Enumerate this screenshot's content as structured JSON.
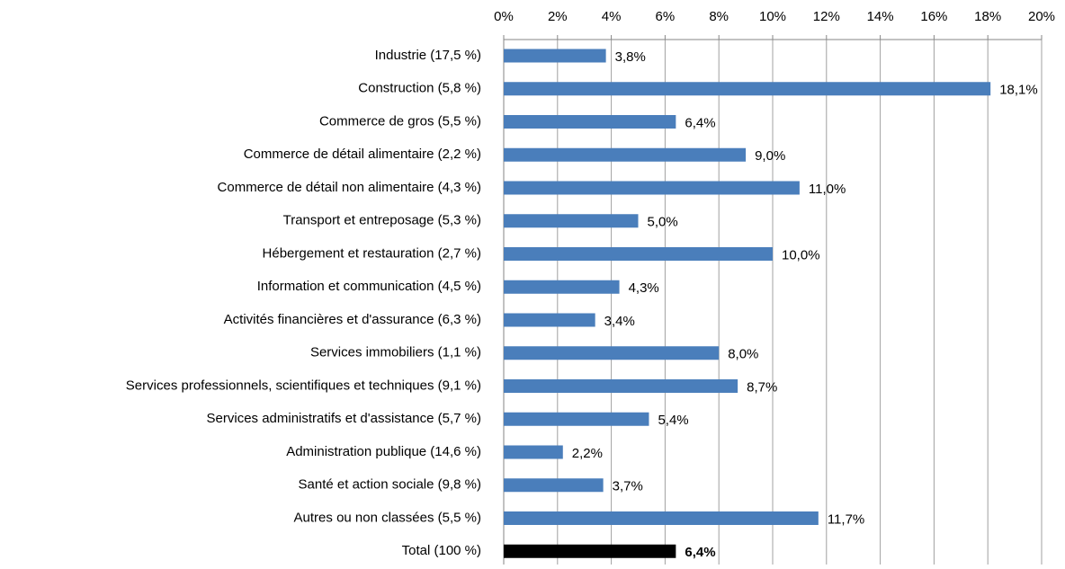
{
  "chart_data": {
    "type": "bar",
    "orientation": "horizontal",
    "categories": [
      "Industrie (17,5 %)",
      "Construction (5,8 %)",
      "Commerce de gros (5,5 %)",
      "Commerce de détail alimentaire (2,2 %)",
      "Commerce de détail non alimentaire (4,3 %)",
      "Transport et entreposage (5,3 %)",
      "Hébergement et restauration (2,7 %)",
      "Information et communication (4,5 %)",
      "Activités financières et d'assurance (6,3 %)",
      "Services immobiliers (1,1 %)",
      "Services professionnels, scientifiques et techniques (9,1 %)",
      "Services administratifs et d'assistance (5,7 %)",
      "Administration publique (14,6 %)",
      "Santé et action sociale (9,8 %)",
      "Autres ou non classées (5,5 %)",
      "Total (100 %)"
    ],
    "values": [
      3.8,
      18.1,
      6.4,
      9.0,
      11.0,
      5.0,
      10.0,
      4.3,
      3.4,
      8.0,
      8.7,
      5.4,
      2.2,
      3.7,
      11.7,
      6.4
    ],
    "value_labels": [
      "3,8%",
      "18,1%",
      "6,4%",
      "9,0%",
      "11,0%",
      "5,0%",
      "10,0%",
      "4,3%",
      "3,4%",
      "8,0%",
      "8,7%",
      "5,4%",
      "2,2%",
      "3,7%",
      "11,7%",
      "6,4%"
    ],
    "colors": [
      "#4a7ebb",
      "#4a7ebb",
      "#4a7ebb",
      "#4a7ebb",
      "#4a7ebb",
      "#4a7ebb",
      "#4a7ebb",
      "#4a7ebb",
      "#4a7ebb",
      "#4a7ebb",
      "#4a7ebb",
      "#4a7ebb",
      "#4a7ebb",
      "#4a7ebb",
      "#4a7ebb",
      "#000000"
    ],
    "xlim": [
      0,
      20
    ],
    "xticks": [
      {
        "value": 0,
        "label": "0%"
      },
      {
        "value": 2,
        "label": "2%"
      },
      {
        "value": 4,
        "label": "4%"
      },
      {
        "value": 6,
        "label": "6%"
      },
      {
        "value": 8,
        "label": "8%"
      },
      {
        "value": 10,
        "label": "10%"
      },
      {
        "value": 12,
        "label": "12%"
      },
      {
        "value": 14,
        "label": "14%"
      },
      {
        "value": 16,
        "label": "16%"
      },
      {
        "value": 18,
        "label": "18%"
      },
      {
        "value": 20,
        "label": "20%"
      }
    ],
    "grid": true
  }
}
